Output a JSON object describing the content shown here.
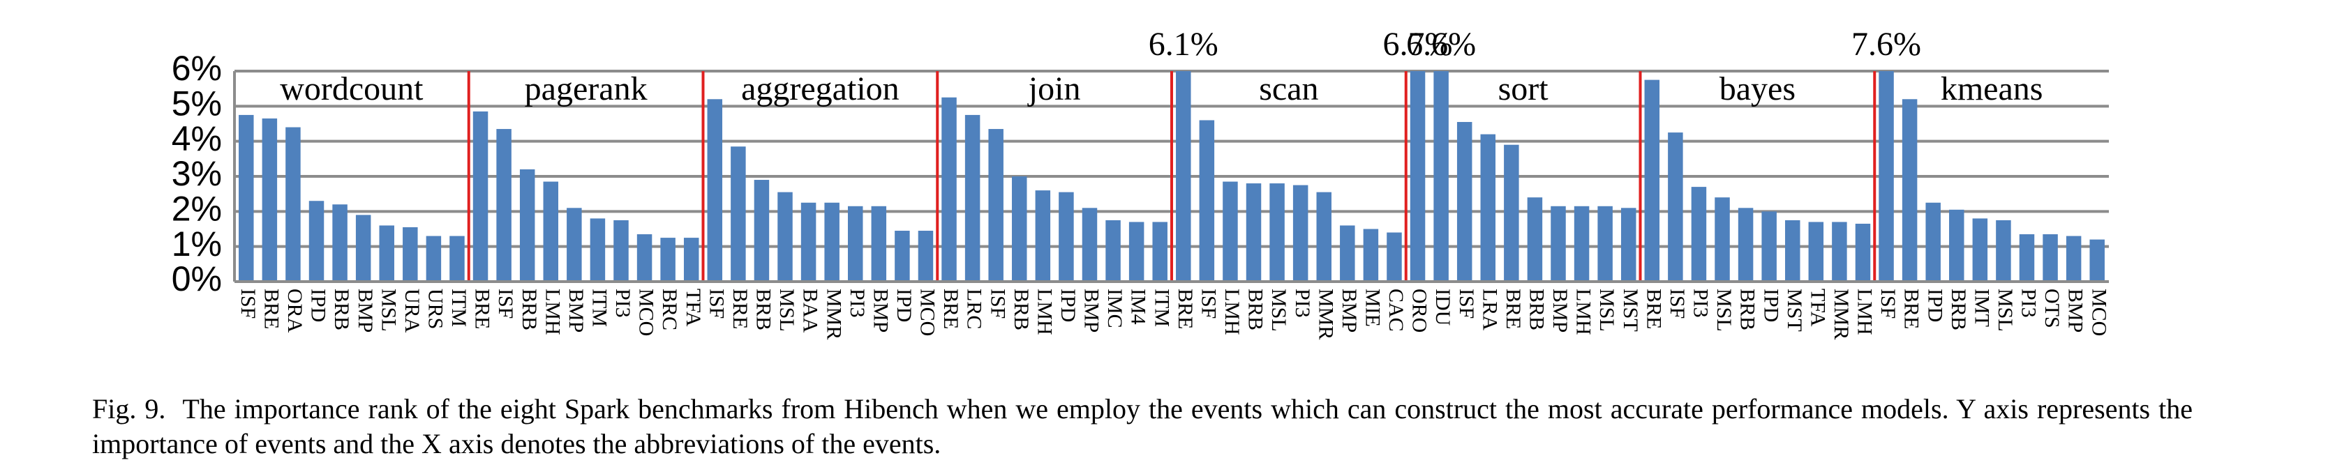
{
  "chart_data": {
    "type": "bar",
    "groups": [
      {
        "name": "wordcount",
        "categories": [
          "ISF",
          "BRE",
          "ORA",
          "IPD",
          "BRB",
          "BMP",
          "MSL",
          "URA",
          "URS",
          "ITM"
        ],
        "values": [
          4.75,
          4.65,
          4.4,
          2.3,
          2.2,
          1.9,
          1.6,
          1.55,
          1.3,
          1.3
        ],
        "value_labels": [
          null,
          null,
          null,
          null,
          null,
          null,
          null,
          null,
          null,
          null
        ]
      },
      {
        "name": "pagerank",
        "categories": [
          "BRE",
          "ISF",
          "BRB",
          "LMH",
          "BMP",
          "ITM",
          "PI3",
          "MCO",
          "BRC",
          "TFA"
        ],
        "values": [
          4.85,
          4.35,
          3.2,
          2.85,
          2.1,
          1.8,
          1.75,
          1.35,
          1.25,
          1.25
        ],
        "value_labels": [
          null,
          null,
          null,
          null,
          null,
          null,
          null,
          null,
          null,
          null
        ]
      },
      {
        "name": "aggregation",
        "categories": [
          "ISF",
          "BRE",
          "BRB",
          "MSL",
          "BAA",
          "MMR",
          "PI3",
          "BMP",
          "IPD",
          "MCO"
        ],
        "values": [
          5.2,
          3.85,
          2.9,
          2.55,
          2.25,
          2.25,
          2.15,
          2.15,
          1.45,
          1.45
        ],
        "value_labels": [
          null,
          null,
          null,
          null,
          null,
          null,
          null,
          null,
          null,
          null
        ]
      },
      {
        "name": "join",
        "categories": [
          "BRE",
          "LRC",
          "ISF",
          "BRB",
          "LMH",
          "IPD",
          "BMP",
          "IMC",
          "IM4",
          "ITM"
        ],
        "values": [
          5.25,
          4.75,
          4.35,
          3.0,
          2.6,
          2.55,
          2.1,
          1.75,
          1.7,
          1.7
        ],
        "value_labels": [
          null,
          null,
          null,
          null,
          null,
          null,
          null,
          null,
          null,
          null
        ]
      },
      {
        "name": "scan",
        "categories": [
          "BRE",
          "ISF",
          "LMH",
          "BRB",
          "MSL",
          "PI3",
          "MMR",
          "BMP",
          "MIE",
          "CAC"
        ],
        "values": [
          6.1,
          4.6,
          2.85,
          2.8,
          2.8,
          2.75,
          2.55,
          1.6,
          1.5,
          1.4
        ],
        "value_labels": [
          "6.1%",
          null,
          null,
          null,
          null,
          null,
          null,
          null,
          null,
          null
        ]
      },
      {
        "name": "sort",
        "categories": [
          "ORO",
          "IDU",
          "ISF",
          "LRA",
          "BRE",
          "BRB",
          "BMP",
          "LMH",
          "MSL",
          "MST"
        ],
        "values": [
          6.7,
          6.6,
          4.55,
          4.2,
          3.9,
          2.4,
          2.15,
          2.15,
          2.15,
          2.1
        ],
        "value_labels": [
          "6.7%",
          "6.6%",
          null,
          null,
          null,
          null,
          null,
          null,
          null,
          null
        ]
      },
      {
        "name": "bayes",
        "categories": [
          "BRE",
          "ISF",
          "PI3",
          "MSL",
          "BRB",
          "IPD",
          "MST",
          "TFA",
          "MMR",
          "LMH"
        ],
        "values": [
          5.75,
          4.25,
          2.7,
          2.4,
          2.1,
          2.0,
          1.75,
          1.7,
          1.7,
          1.65
        ],
        "value_labels": [
          null,
          null,
          null,
          null,
          null,
          null,
          null,
          null,
          null,
          null
        ]
      },
      {
        "name": "kmeans",
        "categories": [
          "ISF",
          "BRE",
          "IPD",
          "BRB",
          "IMT",
          "MSL",
          "PI3",
          "OTS",
          "BMP",
          "MCO"
        ],
        "values": [
          7.6,
          5.2,
          2.25,
          2.05,
          1.8,
          1.75,
          1.35,
          1.35,
          1.3,
          1.2
        ],
        "value_labels": [
          "7.6%",
          null,
          null,
          null,
          null,
          null,
          null,
          null,
          null,
          null
        ]
      }
    ],
    "color": "#4f81bd",
    "separator_color": "#e02020",
    "ylim": [
      0,
      6
    ],
    "yticks": [
      {
        "value": 0,
        "label": "0%"
      },
      {
        "value": 1,
        "label": "1%"
      },
      {
        "value": 2,
        "label": "2%"
      },
      {
        "value": 3,
        "label": "3%"
      },
      {
        "value": 4,
        "label": "4%"
      },
      {
        "value": 5,
        "label": "5%"
      },
      {
        "value": 6,
        "label": "6%"
      }
    ],
    "grid": true,
    "caption_label": "Fig. 9.",
    "caption": "The importance rank of the eight Spark benchmarks from Hibench when we employ the events which can construct the most accurate performance models. Y axis represents the importance of events and the X axis denotes the abbreviations of the events."
  }
}
